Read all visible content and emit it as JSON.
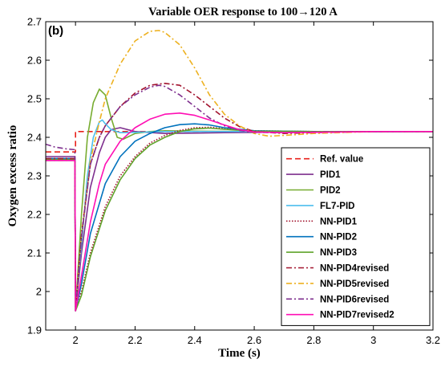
{
  "chart_data": {
    "type": "line",
    "title": "Variable OER response to  100→120 A",
    "panel_label": "(b)",
    "xlabel": "Time (s)",
    "ylabel": "Oxygen excess ratio",
    "xlim": [
      1.9,
      3.2
    ],
    "ylim": [
      1.9,
      2.7
    ],
    "xticks": [
      2,
      2.2,
      2.4,
      2.6,
      2.8,
      3,
      3.2
    ],
    "xtick_labels": [
      "2",
      "2.2",
      "2.4",
      "2.6",
      "2.8",
      "3",
      "3.2"
    ],
    "yticks": [
      1.9,
      2,
      2.1,
      2.2,
      2.3,
      2.4,
      2.5,
      2.6,
      2.7
    ],
    "ytick_labels": [
      "1.9",
      "2",
      "2.1",
      "2.2",
      "2.3",
      "2.4",
      "2.5",
      "2.6",
      "2.7"
    ],
    "grid": false,
    "legend_position": "lower-right",
    "series": [
      {
        "name": "Ref. value",
        "color": "#e8211b",
        "dash": "7,4",
        "width": 1.6,
        "x": [
          1.9,
          2.0,
          2.0,
          2.05,
          3.2
        ],
        "y": [
          2.362,
          2.362,
          2.415,
          2.415,
          2.415
        ]
      },
      {
        "name": "PID1",
        "color": "#7e2f8e",
        "dash": "",
        "width": 1.6,
        "x": [
          1.9,
          1.998,
          2.0,
          2.02,
          2.05,
          2.08,
          2.1,
          2.12,
          2.15,
          2.2,
          2.3,
          2.5,
          2.8,
          3.2
        ],
        "y": [
          2.35,
          2.35,
          1.95,
          2.1,
          2.27,
          2.36,
          2.4,
          2.42,
          2.425,
          2.415,
          2.41,
          2.412,
          2.414,
          2.415
        ]
      },
      {
        "name": "PID2",
        "color": "#77ac30",
        "dash": "",
        "width": 1.6,
        "x": [
          1.9,
          1.998,
          2.0,
          2.02,
          2.04,
          2.06,
          2.08,
          2.1,
          2.12,
          2.14,
          2.16,
          2.2,
          2.25,
          2.3,
          2.4,
          2.6,
          3.2
        ],
        "y": [
          2.34,
          2.34,
          1.95,
          2.2,
          2.4,
          2.49,
          2.525,
          2.51,
          2.45,
          2.4,
          2.395,
          2.41,
          2.415,
          2.417,
          2.416,
          2.415,
          2.415
        ]
      },
      {
        "name": "FL7-PID",
        "color": "#4dbeee",
        "dash": "",
        "width": 1.6,
        "x": [
          1.9,
          1.998,
          2.0,
          2.02,
          2.04,
          2.06,
          2.08,
          2.09,
          2.1,
          2.12,
          2.15,
          2.2,
          2.3,
          3.2
        ],
        "y": [
          2.34,
          2.34,
          1.96,
          2.12,
          2.3,
          2.4,
          2.44,
          2.445,
          2.435,
          2.42,
          2.412,
          2.413,
          2.415,
          2.415
        ]
      },
      {
        "name": "NN-PID1",
        "color": "#a2142f",
        "dash": "1.5,2",
        "width": 1.6,
        "x": [
          1.9,
          1.998,
          2.0,
          2.02,
          2.05,
          2.1,
          2.15,
          2.2,
          2.25,
          2.3,
          2.35,
          2.4,
          2.45,
          2.5,
          2.6,
          2.8,
          3.2
        ],
        "y": [
          2.345,
          2.345,
          1.96,
          2.0,
          2.1,
          2.22,
          2.3,
          2.35,
          2.385,
          2.405,
          2.418,
          2.425,
          2.426,
          2.423,
          2.417,
          2.415,
          2.415
        ]
      },
      {
        "name": "NN-PID2",
        "color": "#0072bd",
        "dash": "",
        "width": 1.6,
        "x": [
          1.9,
          1.998,
          2.0,
          2.02,
          2.05,
          2.1,
          2.15,
          2.2,
          2.25,
          2.3,
          2.35,
          2.4,
          2.45,
          2.5,
          2.6,
          2.8,
          3.2
        ],
        "y": [
          2.345,
          2.345,
          1.95,
          2.02,
          2.15,
          2.28,
          2.35,
          2.39,
          2.41,
          2.425,
          2.433,
          2.435,
          2.432,
          2.425,
          2.417,
          2.415,
          2.415
        ]
      },
      {
        "name": "NN-PID3",
        "color": "#5fa32a",
        "dash": "",
        "width": 1.6,
        "x": [
          1.9,
          1.998,
          2.0,
          2.02,
          2.05,
          2.1,
          2.15,
          2.2,
          2.25,
          2.3,
          2.35,
          2.4,
          2.45,
          2.5,
          2.6,
          2.8,
          3.2
        ],
        "y": [
          2.342,
          2.342,
          1.95,
          1.99,
          2.09,
          2.21,
          2.29,
          2.345,
          2.38,
          2.4,
          2.415,
          2.422,
          2.424,
          2.421,
          2.416,
          2.415,
          2.415
        ]
      },
      {
        "name": "NN-PID4revised",
        "color": "#a2142f",
        "dash": "7,3,2,3",
        "width": 1.6,
        "x": [
          1.9,
          1.998,
          2.0,
          2.02,
          2.05,
          2.08,
          2.1,
          2.15,
          2.2,
          2.25,
          2.3,
          2.35,
          2.4,
          2.45,
          2.5,
          2.55,
          2.6,
          2.7,
          2.8,
          3.0,
          3.2
        ],
        "y": [
          2.345,
          2.345,
          1.95,
          2.15,
          2.33,
          2.4,
          2.43,
          2.48,
          2.515,
          2.535,
          2.54,
          2.535,
          2.51,
          2.48,
          2.45,
          2.428,
          2.415,
          2.41,
          2.412,
          2.415,
          2.415
        ]
      },
      {
        "name": "NN-PID5revised",
        "color": "#edb120",
        "dash": "7,3,2,3",
        "width": 1.6,
        "x": [
          1.9,
          1.998,
          2.0,
          2.02,
          2.05,
          2.08,
          2.1,
          2.15,
          2.2,
          2.25,
          2.28,
          2.3,
          2.35,
          2.4,
          2.45,
          2.5,
          2.55,
          2.6,
          2.65,
          2.7,
          2.8,
          3.0,
          3.2
        ],
        "y": [
          2.34,
          2.34,
          1.95,
          2.14,
          2.34,
          2.44,
          2.5,
          2.59,
          2.65,
          2.675,
          2.677,
          2.672,
          2.64,
          2.58,
          2.51,
          2.46,
          2.43,
          2.41,
          2.403,
          2.405,
          2.41,
          2.415,
          2.415
        ]
      },
      {
        "name": "NN-PID6revised",
        "color": "#7e2f8e",
        "dash": "7,3,2,3",
        "width": 1.6,
        "x": [
          1.9,
          1.93,
          1.97,
          1.998,
          2.0,
          2.02,
          2.05,
          2.08,
          2.1,
          2.15,
          2.2,
          2.25,
          2.28,
          2.3,
          2.35,
          2.4,
          2.45,
          2.5,
          2.55,
          2.6,
          2.7,
          2.8,
          3.0,
          3.2
        ],
        "y": [
          2.382,
          2.375,
          2.37,
          2.368,
          1.95,
          2.14,
          2.33,
          2.4,
          2.43,
          2.48,
          2.51,
          2.53,
          2.535,
          2.532,
          2.51,
          2.48,
          2.45,
          2.43,
          2.418,
          2.413,
          2.412,
          2.414,
          2.415,
          2.415
        ]
      },
      {
        "name": "NN-PID7revised2",
        "color": "#ff0fb4",
        "dash": "",
        "width": 1.6,
        "x": [
          1.9,
          1.998,
          2.0,
          2.02,
          2.05,
          2.08,
          2.1,
          2.15,
          2.2,
          2.25,
          2.3,
          2.35,
          2.4,
          2.45,
          2.5,
          2.55,
          2.6,
          2.7,
          2.8,
          3.0,
          3.2
        ],
        "y": [
          2.34,
          2.34,
          1.95,
          2.04,
          2.18,
          2.28,
          2.33,
          2.39,
          2.425,
          2.447,
          2.46,
          2.463,
          2.457,
          2.445,
          2.432,
          2.42,
          2.414,
          2.412,
          2.413,
          2.415,
          2.415
        ]
      }
    ]
  }
}
